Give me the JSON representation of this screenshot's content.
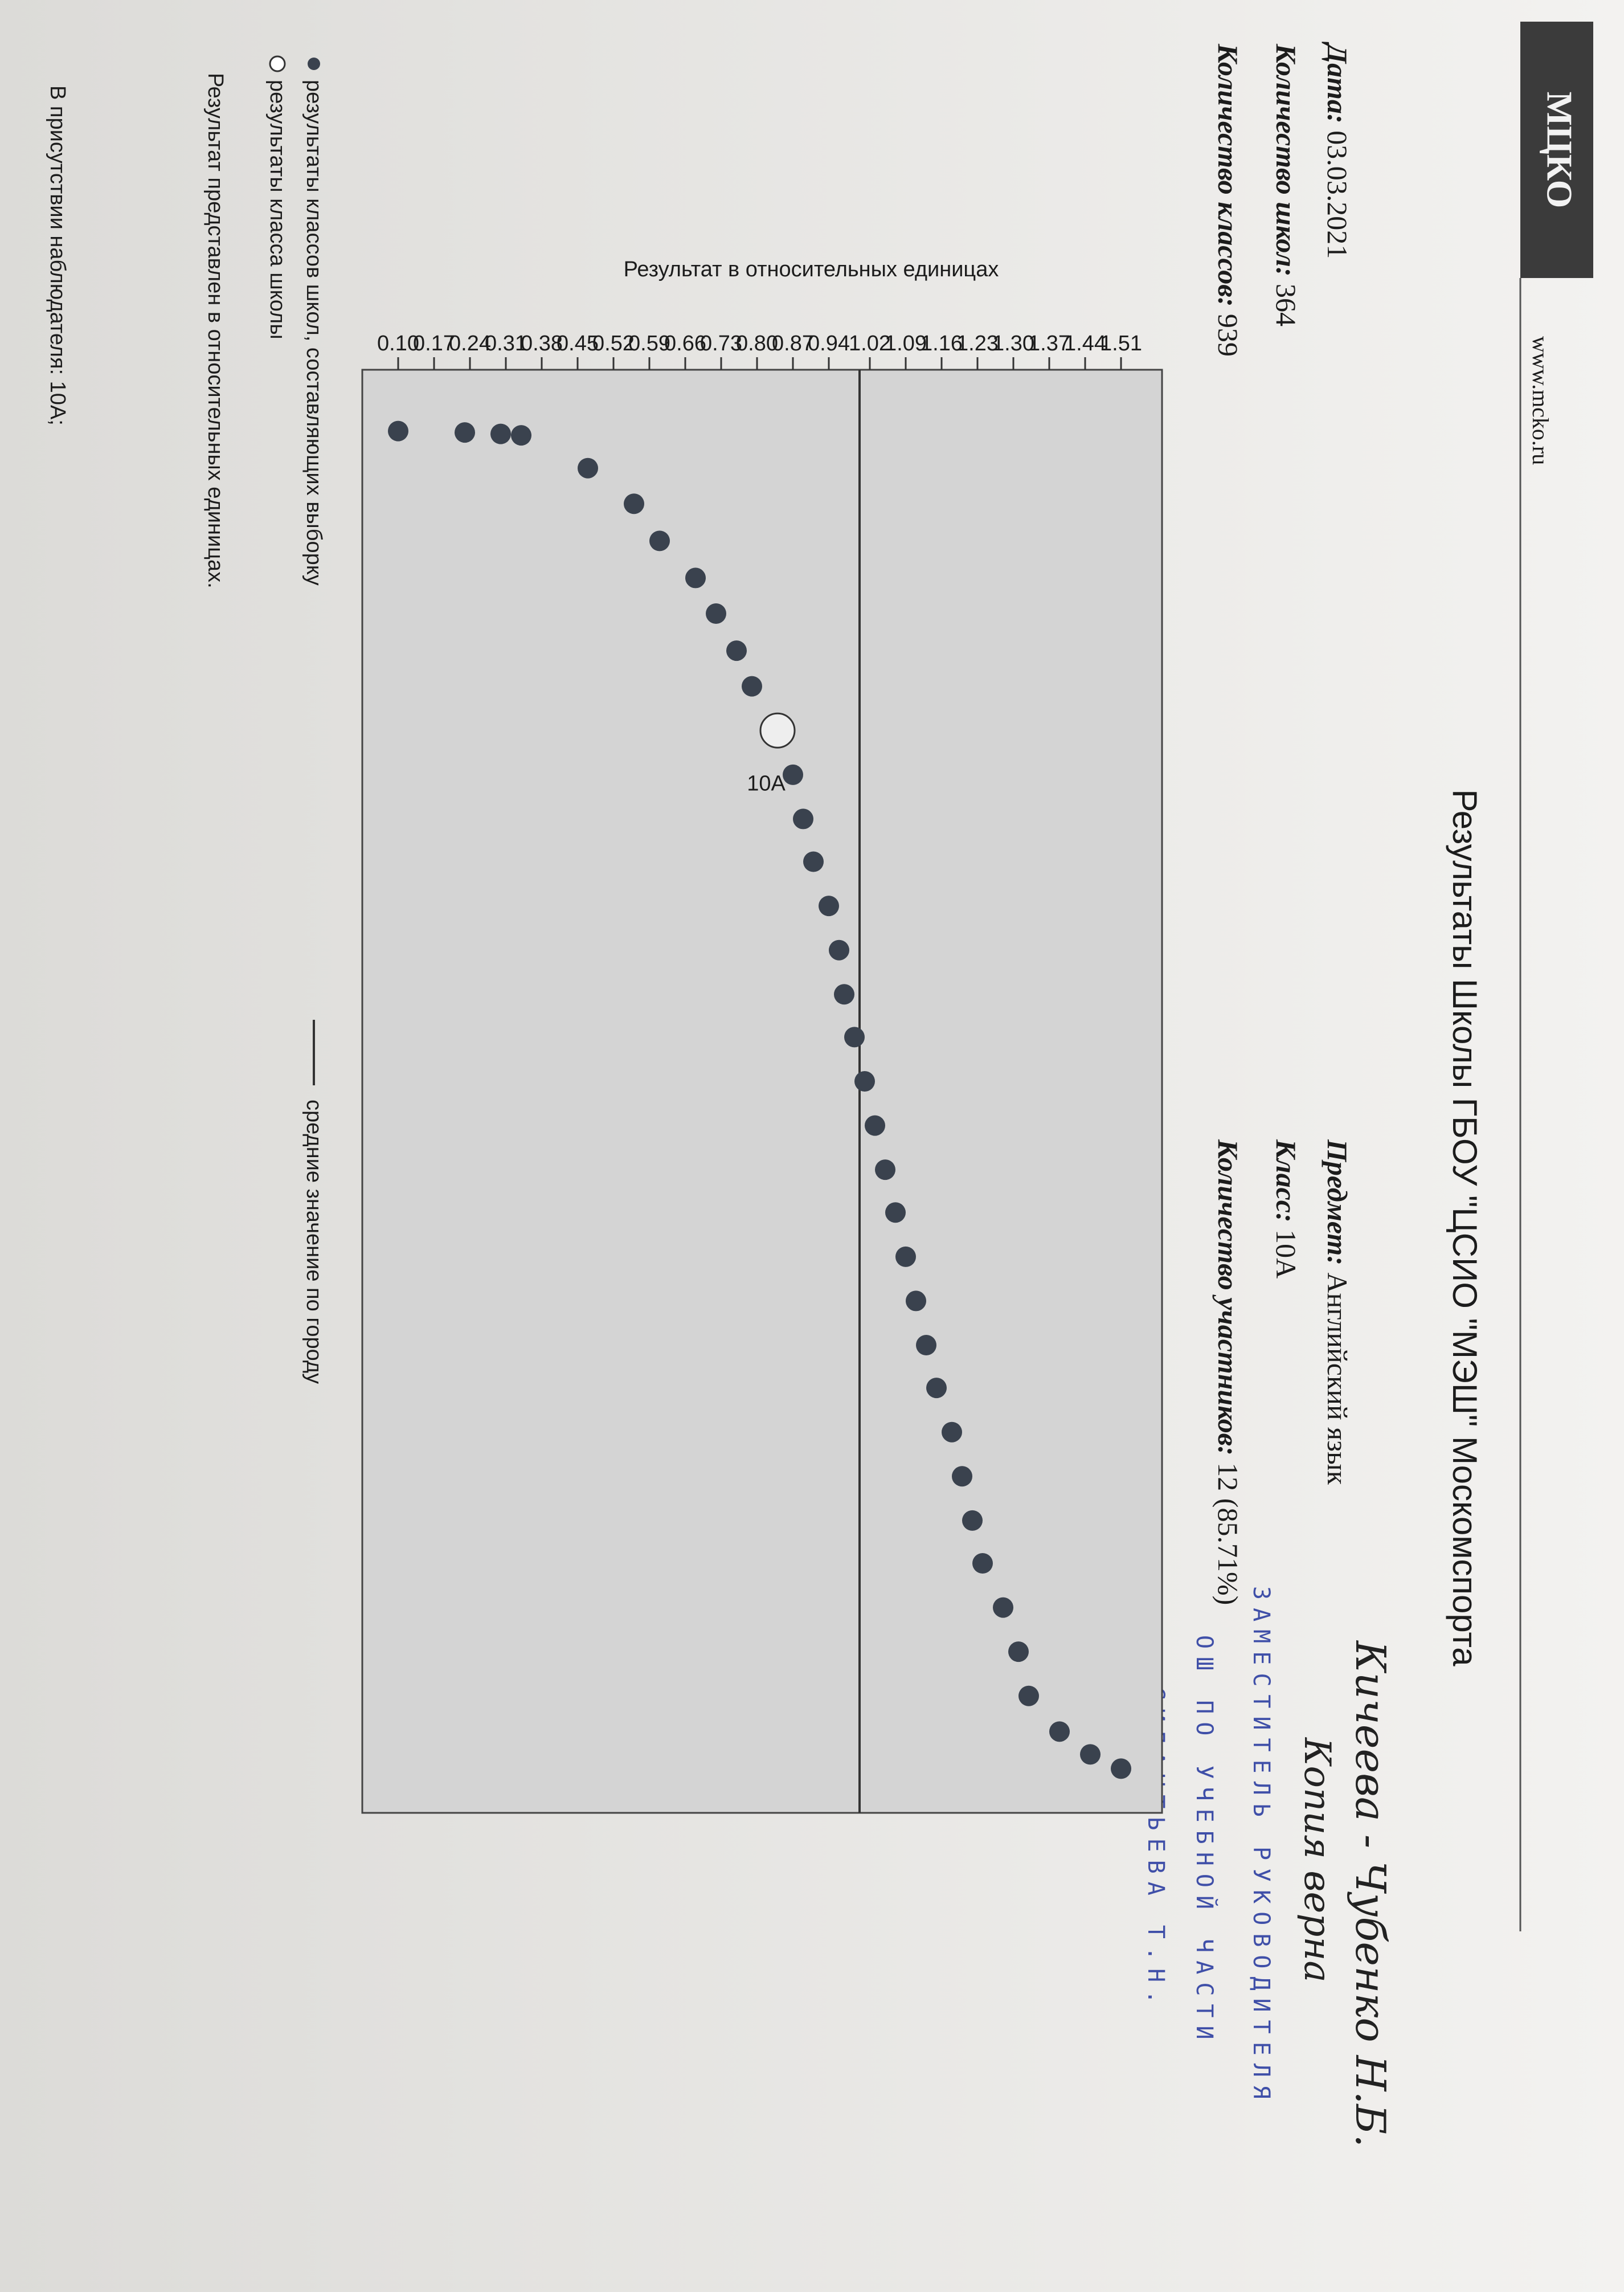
{
  "header": {
    "logo": "МЦКО",
    "site": "www.mcko.ru",
    "title": "Результаты Школы ГБОУ \"ЦСИО \"МЭШ\" Москомспорта"
  },
  "info": [
    {
      "label": "Дата:",
      "value": "03.03.2021"
    },
    {
      "label": "Количество школ:",
      "value": "364"
    },
    {
      "label": "Количество классов:",
      "value": "939"
    },
    {
      "label": "Предмет:",
      "value": "Английский язык"
    },
    {
      "label": "Класс:",
      "value": "10А"
    },
    {
      "label": "Количество участников:",
      "value": "12 (85.71%)"
    }
  ],
  "chart_data": {
    "type": "scatter",
    "y_label": "Результат в относительных единицах",
    "xlim": [
      -42,
      970
    ],
    "ylim": [
      0.03,
      1.59
    ],
    "yticks": [
      1.51,
      1.44,
      1.37,
      {
        "value": 1.3,
        "label": "1.30"
      },
      1.23,
      1.16,
      1.09,
      1.02,
      0.94,
      0.87,
      {
        "value": 0.8,
        "label": "0.80"
      },
      0.73,
      0.66,
      0.59,
      0.52,
      0.45,
      0.38,
      0.31,
      0.24,
      0.17,
      {
        "value": 0.1,
        "label": "0.10"
      }
    ],
    "series": [
      {
        "name": "результаты классов школ, составляющих выборку",
        "color": "#3a424e",
        "x": [
          1,
          2,
          3,
          4,
          27,
          52,
          78,
          104,
          129,
          155,
          180,
          211,
          242,
          273,
          303,
          334,
          365,
          396,
          426,
          457,
          488,
          519,
          549,
          580,
          611,
          642,
          672,
          703,
          734,
          765,
          795,
          826,
          857,
          888,
          913,
          929,
          939
        ],
        "values": [
          0.1,
          0.23,
          0.3,
          0.34,
          0.47,
          0.56,
          0.61,
          0.68,
          0.72,
          0.76,
          0.79,
          0.84,
          0.87,
          0.89,
          0.91,
          0.94,
          0.96,
          0.97,
          0.99,
          1.01,
          1.03,
          1.05,
          1.07,
          1.09,
          1.11,
          1.13,
          1.15,
          1.18,
          1.2,
          1.22,
          1.24,
          1.28,
          1.31,
          1.33,
          1.39,
          1.45,
          1.51
        ]
      }
    ],
    "highlight": {
      "name": "результаты класса школы",
      "label": "10А",
      "x": 211,
      "value": 0.84
    },
    "mean": {
      "name": "средние значение по городу",
      "value": 1.0
    }
  },
  "note": "Результат представлен в относительных единицах.",
  "observer": "В присутствии наблюдателя: 10А;",
  "stamp": [
    "ЗАМЕСТИТЕЛЬ РУКОВОДИТЕЛЯ",
    "ОШ ПО УЧЕБНОЙ ЧАСТИ",
    "СИЛАНТЬЕВА Т.Н."
  ],
  "handwriting": [
    "Кичеева - Чубенко Н.Б.",
    "Копия верна"
  ]
}
